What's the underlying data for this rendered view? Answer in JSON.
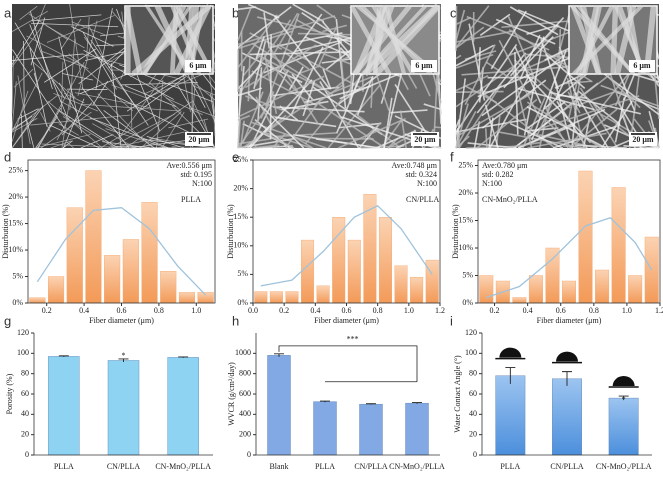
{
  "panel_labels": [
    "a",
    "b",
    "c",
    "d",
    "e",
    "f",
    "g",
    "h",
    "i"
  ],
  "images": [
    {
      "scale_inset": "6 μm",
      "scale_bar": "20 μm"
    },
    {
      "scale_inset": "6 μm",
      "scale_bar": "20 μm"
    },
    {
      "scale_inset": "6 μm",
      "scale_bar": "20 μm"
    }
  ],
  "chart_data": [
    {
      "type": "histogram",
      "label": "PLLA",
      "annotations": [
        "Ave:0.556 μm",
        "std: 0.195",
        "N:100"
      ],
      "x_label": "Fiber diameter (μm)",
      "y_label": "Disturbution (%)",
      "bins": [
        0.1,
        0.2,
        0.3,
        0.4,
        0.5,
        0.6,
        0.7,
        0.8,
        0.9,
        1.0,
        1.1
      ],
      "values": [
        1,
        5,
        18,
        25,
        9,
        12,
        19,
        6,
        2,
        2
      ],
      "curve": {
        "x": [
          0.15,
          0.3,
          0.45,
          0.6,
          0.75,
          0.9,
          1.05
        ],
        "y": [
          4,
          12,
          17.5,
          18,
          14,
          7,
          1.5
        ],
        "color": "#9fc3dc"
      },
      "color": "#f4a46a",
      "xlim": [
        0.1,
        1.1
      ],
      "xticks": [
        0.2,
        0.4,
        0.6,
        0.8,
        {
          "value": 1.0,
          "label": "1.0"
        }
      ],
      "ylim": [
        0,
        27
      ],
      "yticks": [
        {
          "value": 0,
          "label": "0%"
        },
        {
          "value": 5,
          "label": "5%"
        },
        {
          "value": 10,
          "label": "10%"
        },
        {
          "value": 15,
          "label": "15%"
        },
        {
          "value": 20,
          "label": "20%"
        },
        {
          "value": 25,
          "label": "25%"
        }
      ]
    },
    {
      "type": "histogram",
      "label": "CN/PLLA",
      "annotations": [
        "Ave:0.748 μm",
        "std: 0.324",
        "N:100"
      ],
      "x_label": "Fiber diameter (μm)",
      "y_label": "Disturbution (%)",
      "bins": [
        0,
        0.1,
        0.2,
        0.3,
        0.4,
        0.5,
        0.6,
        0.7,
        0.8,
        0.9,
        1.0,
        1.1,
        1.2
      ],
      "values": [
        2,
        2,
        2,
        11,
        3,
        15,
        11,
        19,
        15,
        6.5,
        4.5,
        7.5
      ],
      "curve": {
        "x": [
          0.05,
          0.25,
          0.45,
          0.65,
          0.8,
          0.95,
          1.15
        ],
        "y": [
          3,
          4,
          9,
          15,
          17,
          13,
          5
        ],
        "color": "#9fc3dc"
      },
      "color": "#f4a46a",
      "xlim": [
        0,
        1.2
      ],
      "xticks": [
        {
          "value": 0,
          "label": "0.0"
        },
        0.2,
        0.4,
        0.6,
        0.8,
        {
          "value": 1.0,
          "label": "1.0"
        },
        1.2
      ],
      "ylim": [
        0,
        25
      ],
      "yticks": [
        {
          "value": 0,
          "label": "0%"
        },
        {
          "value": 5,
          "label": "5%"
        },
        {
          "value": 10,
          "label": "10%"
        },
        {
          "value": 15,
          "label": "15%"
        },
        {
          "value": 20,
          "label": "20%"
        },
        {
          "value": 25,
          "label": "25%"
        }
      ]
    },
    {
      "type": "histogram",
      "label": "CN-MnO₂/PLLA",
      "annotations": [
        "Ave:0.780 μm",
        "std: 0.282",
        "N:100"
      ],
      "x_label": "Fiber diameter (μm)",
      "y_label": "Disturbution (%)",
      "bins": [
        0.1,
        0.2,
        0.3,
        0.4,
        0.5,
        0.6,
        0.7,
        0.8,
        0.9,
        1.0,
        1.1,
        1.2
      ],
      "values": [
        5,
        4,
        1,
        5,
        10,
        4,
        24,
        6,
        21,
        5,
        12
      ],
      "curve": {
        "x": [
          0.15,
          0.35,
          0.55,
          0.75,
          0.9,
          1.05,
          1.15
        ],
        "y": [
          1,
          3,
          8,
          14,
          15.5,
          11,
          6
        ],
        "color": "#9fc3dc"
      },
      "color": "#f4a46a",
      "xlim": [
        0.1,
        1.2
      ],
      "xticks": [
        0.2,
        0.4,
        0.6,
        0.8,
        {
          "value": 1.0,
          "label": "1.0"
        },
        1.2
      ],
      "ylim": [
        0,
        26
      ],
      "yticks": [
        {
          "value": 0,
          "label": "0%"
        },
        {
          "value": 5,
          "label": "5%"
        },
        {
          "value": 10,
          "label": "10%"
        },
        {
          "value": 15,
          "label": "15%"
        },
        {
          "value": 20,
          "label": "20%"
        },
        {
          "value": 25,
          "label": "25%"
        }
      ]
    },
    {
      "type": "bar",
      "y_label": "Porosity (%)",
      "categories": [
        "PLLA",
        "CN/PLLA",
        "CN-MnO₂/PLLA"
      ],
      "values": [
        97,
        93,
        96
      ],
      "errors": [
        0.5,
        1.5,
        0.5
      ],
      "significance": "*",
      "color": "#8fd3f3",
      "ylim": [
        0,
        120
      ],
      "yticks": [
        0,
        20,
        40,
        60,
        80,
        100,
        120
      ]
    },
    {
      "type": "bar",
      "y_label": "WVCR (g/cm²/day)",
      "categories": [
        "Blank",
        "PLLA",
        "CN/PLLA",
        "CN-MnO₂/PLLA"
      ],
      "values": [
        980,
        525,
        500,
        510
      ],
      "errors": [
        15,
        6,
        4,
        6
      ],
      "significance": "***",
      "color": "#82a9e3",
      "ylim": [
        0,
        1200
      ],
      "yticks": [
        0,
        200,
        400,
        600,
        800,
        1000
      ]
    },
    {
      "type": "bar",
      "y_label": "Water Contact Angle (°)",
      "categories": [
        "PLLA",
        "CN/PLLA",
        "CN-MnO₂/PLLA"
      ],
      "values": [
        78,
        75,
        56
      ],
      "errors": [
        8,
        7,
        2
      ],
      "significance": "*",
      "color": "#5c9ce2",
      "ylim": [
        0,
        120
      ],
      "yticks": [
        0,
        20,
        40,
        60,
        80,
        100,
        120
      ]
    }
  ]
}
